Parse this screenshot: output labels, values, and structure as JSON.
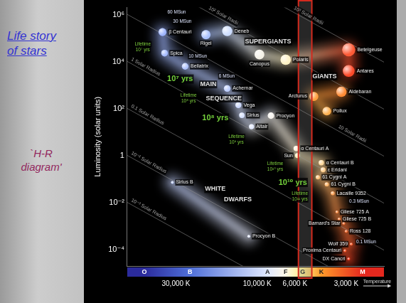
{
  "slide": {
    "heading": "Life story of stars",
    "caption": "`H-R diagram'"
  },
  "chart_data": {
    "type": "scatter",
    "y_label": "Luminosity (solar units)",
    "x_label": "Temperature",
    "log": true,
    "grid": false,
    "xlim": [
      58000,
      1800
    ],
    "xticks": [
      {
        "value": 30000,
        "label": "30,000 K"
      },
      {
        "value": 10000,
        "label": "10,000 K"
      },
      {
        "value": 6000,
        "label": "6,000 K"
      },
      {
        "value": 3000,
        "label": "3,000 K"
      }
    ],
    "ylim": [
      2e-05,
      2000000
    ],
    "yticks": [
      {
        "value": 1000000,
        "label": "10⁶"
      },
      {
        "value": 10000,
        "label": "10⁴"
      },
      {
        "value": 100,
        "label": "10²"
      },
      1,
      {
        "value": 0.01,
        "label": "10⁻²"
      },
      {
        "value": 0.0001,
        "label": "10⁻⁴"
      }
    ],
    "spectral_classes": [
      {
        "value": 46000,
        "label": "O"
      },
      {
        "value": 24800,
        "label": "B"
      },
      {
        "value": 8700,
        "label": "A"
      },
      {
        "value": 6800,
        "label": "F"
      },
      {
        "value": 5400,
        "label": "G"
      },
      {
        "value": 4200,
        "label": "K"
      },
      {
        "value": 2400,
        "label": "M"
      }
    ],
    "radius_lines": [
      {
        "value": 1000,
        "label": "10³ Solar Radii"
      },
      {
        "value": 100,
        "label": "10² Solar Radii"
      },
      {
        "value": 10,
        "label": "10 Solar Radii"
      },
      {
        "value": 1,
        "label": "1 Solar Radius"
      },
      {
        "value": 0.1,
        "label": "0.1 Solar Radius"
      },
      {
        "value": 0.01,
        "label": "10⁻² Solar Radius"
      },
      {
        "value": 0.001,
        "label": "10⁻³ Solar Radius"
      }
    ],
    "regions": [
      {
        "label": "SUPERGIANTS",
        "stars": [
          {
            "name": "Rigel",
            "x": 20000,
            "y": 140000,
            "color": "#a9c1ff"
          },
          {
            "name": "Deneb",
            "x": 15000,
            "y": 200000,
            "color": "#cdddff"
          },
          {
            "name": "Canopus",
            "x": 9700,
            "y": 20000,
            "color": "#f4f1e6"
          },
          {
            "name": "Polaris",
            "x": 6800,
            "y": 12000,
            "color": "#fff2c4"
          },
          {
            "name": "Betelgeuse",
            "x": 2900,
            "y": 32000,
            "color": "#ff5a36"
          },
          {
            "name": "Antares",
            "x": 2900,
            "y": 4000,
            "color": "#ff4a2a"
          }
        ]
      },
      {
        "label": "GIANTS",
        "stars": [
          {
            "name": "Pollux",
            "x": 3900,
            "y": 78,
            "color": "#ffb050"
          },
          {
            "name": "Arcturus",
            "x": 4650,
            "y": 330,
            "color": "#ffa040"
          },
          {
            "name": "Aldebaran",
            "x": 3200,
            "y": 520,
            "color": "#ff8a35"
          }
        ]
      },
      {
        "label": "MAIN SEQUENCE",
        "stars": [
          {
            "name": "β Centauri",
            "x": 36000,
            "y": 180000,
            "color": "#9db4ff"
          },
          {
            "name": "Spica",
            "x": 35000,
            "y": 23000,
            "color": "#a4baff"
          },
          {
            "name": "Bellatrix",
            "x": 26500,
            "y": 6300,
            "color": "#afc3ff"
          },
          {
            "name": "Achernar",
            "x": 15000,
            "y": 720,
            "color": "#bccdff"
          },
          {
            "name": "Vega",
            "x": 12900,
            "y": 140,
            "color": "#cbd8ff"
          },
          {
            "name": "Sirius",
            "x": 12300,
            "y": 52,
            "color": "#d6e1ff"
          },
          {
            "name": "Altair",
            "x": 10800,
            "y": 17,
            "color": "#e2e9ff"
          },
          {
            "name": "Procyon",
            "x": 8300,
            "y": 50,
            "color": "#f6f3ee"
          },
          {
            "name": "α Centauri A",
            "x": 5900,
            "y": 2,
            "color": "#fff3dc"
          },
          {
            "name": "Sun",
            "x": 5800,
            "y": 1,
            "color": "#fff0b8"
          },
          {
            "name": "α Centauri B",
            "x": 4200,
            "y": 0.5,
            "color": "#ffd99c"
          },
          {
            "name": "ε Eridani",
            "x": 4100,
            "y": 0.25,
            "color": "#ffcd8c"
          },
          {
            "name": "61 Cygni A",
            "x": 4400,
            "y": 0.12,
            "color": "#ffc27a"
          },
          {
            "name": "61 Cygni B",
            "x": 3900,
            "y": 0.06,
            "color": "#ffb46a"
          },
          {
            "name": "Lacaille 9352",
            "x": 3600,
            "y": 0.025,
            "color": "#ffa55a"
          },
          {
            "name": "Gliese 725 A",
            "x": 3400,
            "y": 0.004,
            "color": "#ff924a"
          },
          {
            "name": "Gliese 725 B",
            "x": 3300,
            "y": 0.002,
            "color": "#ff8a45"
          },
          {
            "name": "Barnard's Star",
            "x": 3100,
            "y": 0.0013,
            "color": "#ff7a3c"
          },
          {
            "name": "Ross 128",
            "x": 3000,
            "y": 0.0006,
            "color": "#ff7338"
          },
          {
            "name": "Wolf 359",
            "x": 2800,
            "y": 0.00017,
            "color": "#ff6030"
          },
          {
            "name": "Proxima Centauri",
            "x": 3050,
            "y": 9e-05,
            "color": "#ff582c"
          },
          {
            "name": "DX Cancri",
            "x": 2900,
            "y": 4e-05,
            "color": "#ff4525"
          }
        ]
      },
      {
        "label": "WHITE DWARFS",
        "stars": [
          {
            "name": "Sirius B",
            "x": 31500,
            "y": 0.072,
            "color": "#c4d2ff"
          },
          {
            "name": "Procyon B",
            "x": 11200,
            "y": 0.00037,
            "color": "#e6ebff"
          }
        ]
      }
    ],
    "lifetime_labels": [
      "Lifetime 10⁷ yrs",
      "Lifetime 10⁸ yrs",
      "Lifetime 10⁹ yrs",
      "Lifetime 10¹⁰ yrs",
      "Lifetime 10¹¹ yrs"
    ],
    "age_labels": [
      "10⁷ yrs",
      "10⁸ yrs",
      "10¹⁰ yrs"
    ],
    "mass_labels": [
      "60 MSun",
      "30 MSun",
      "10 MSun",
      "6 MSun",
      "0.3 MSun",
      "0.1 MSun"
    ]
  }
}
